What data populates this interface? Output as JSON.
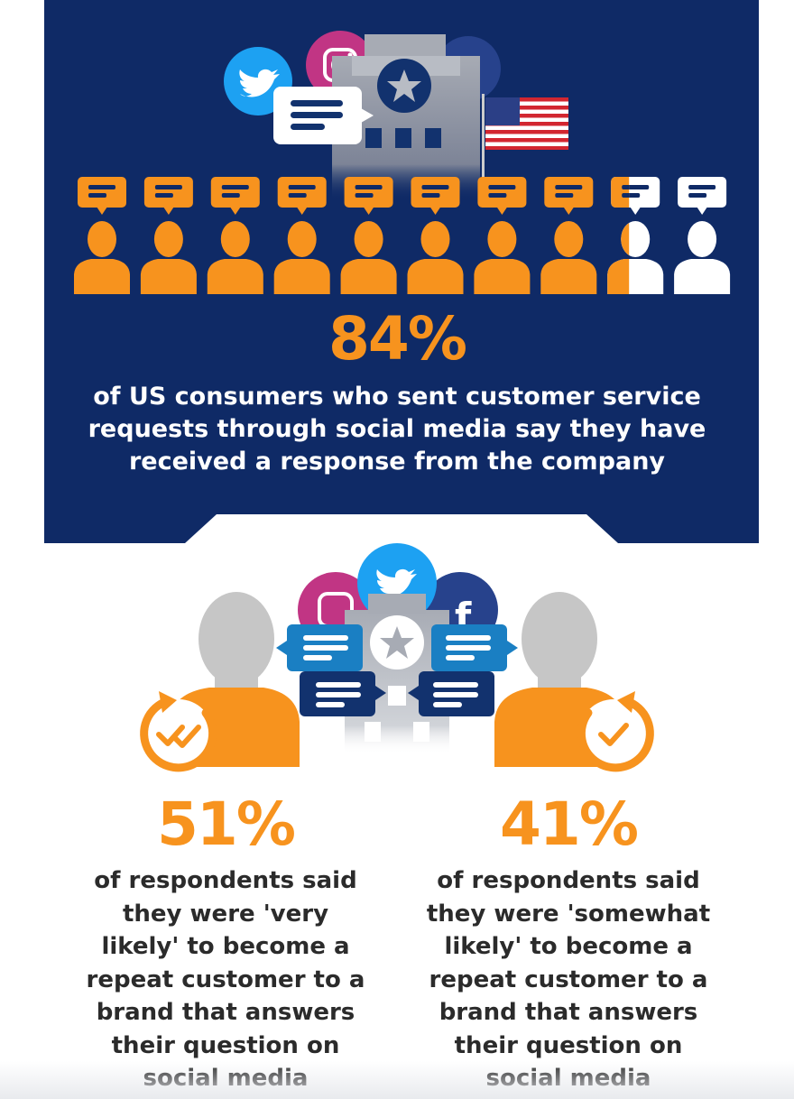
{
  "colors": {
    "navy": "#0f2a66",
    "orange": "#f7931e",
    "white": "#ffffff",
    "gray_person": "#c6c6c6",
    "dark_text": "#2b2b2b",
    "twitter": "#1da1f2",
    "facebook": "#27428c",
    "instagram": "#c13584",
    "bubble_blue": "#1a7fc3",
    "bubble_navy": "#12326e"
  },
  "icons": {
    "social": [
      "twitter-icon",
      "instagram-icon",
      "facebook-icon"
    ],
    "company": "building-star-icon",
    "flag": "us-flag-icon",
    "person": "person-icon",
    "chat": "chat-bubble-icon",
    "check": "check-cycle-icon"
  },
  "top_stat": {
    "value": "84%",
    "text": "of US consumers who sent customer service\nrequests through social media say they have\nreceived a response from the company",
    "people_total": 10,
    "people_highlighted": 8.4
  },
  "left_stat": {
    "value": "51%",
    "text": "of respondents said\nthey were 'very\nlikely' to become a\nrepeat customer to a\nbrand that answers\ntheir question on\nsocial media"
  },
  "right_stat": {
    "value": "41%",
    "text": "of respondents said\nthey were 'somewhat\nlikely' to become a\nrepeat customer to a\nbrand that answers\ntheir question on\nsocial media"
  }
}
